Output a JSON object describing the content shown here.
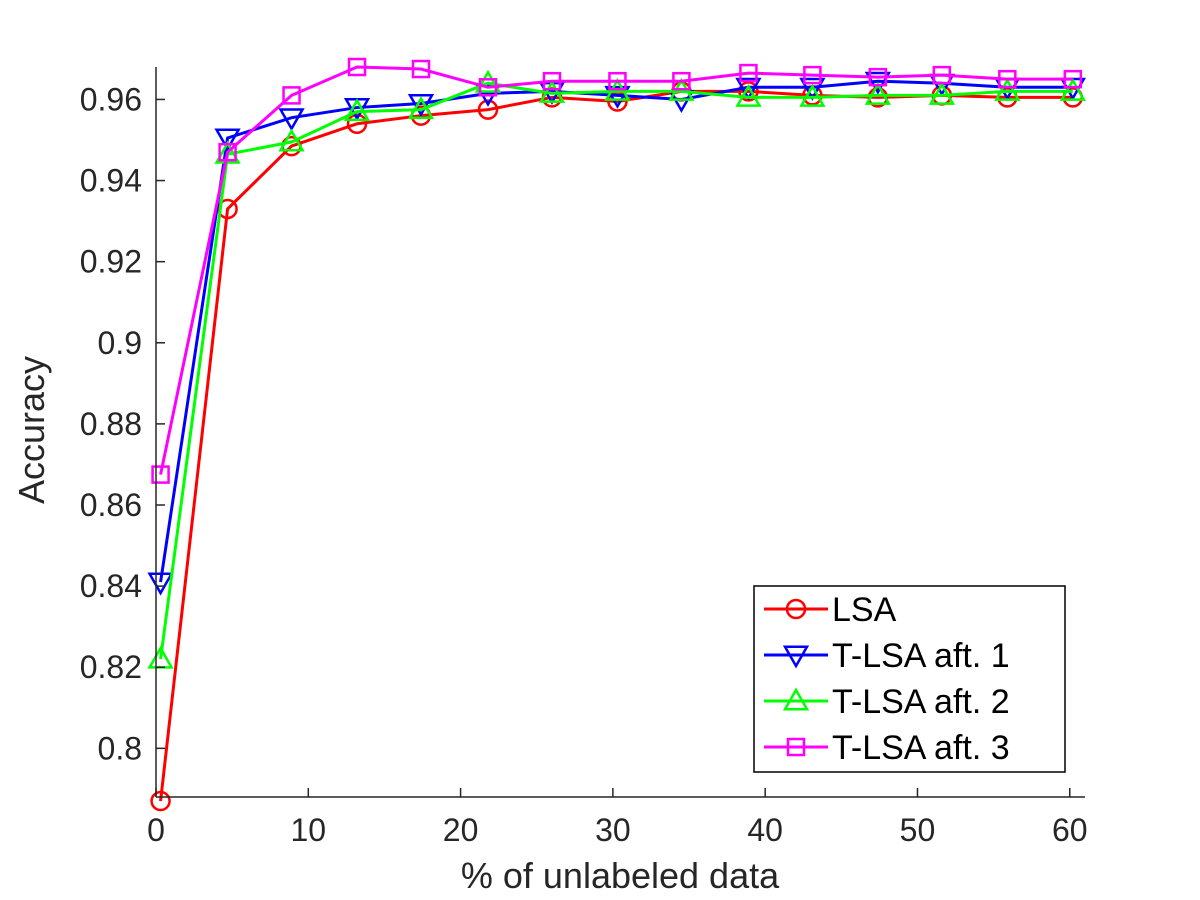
{
  "chart_data": {
    "type": "line",
    "title": "",
    "xlabel": "% of unlabeled data",
    "ylabel": "Accuracy",
    "xlim": [
      0,
      61
    ],
    "ylim": [
      0.788,
      0.968
    ],
    "xticks": [
      0,
      10,
      20,
      30,
      40,
      50,
      60
    ],
    "xtick_labels": [
      "0",
      "10",
      "20",
      "30",
      "40",
      "50",
      "60"
    ],
    "yticks": [
      0.8,
      0.82,
      0.84,
      0.86,
      0.88,
      0.9,
      0.92,
      0.94,
      0.96
    ],
    "ytick_labels": [
      "0.8",
      "0.82",
      "0.84",
      "0.86",
      "0.88",
      "0.9",
      "0.92",
      "0.94",
      "0.96"
    ],
    "grid": false,
    "legend_position": "bottom-right",
    "x": [
      0.3,
      4.7,
      8.9,
      13.2,
      17.4,
      21.8,
      26.0,
      30.3,
      34.5,
      38.9,
      43.1,
      47.4,
      51.6,
      55.9,
      60.2
    ],
    "series": [
      {
        "name": "LSA",
        "color": "#ff0000",
        "marker": "circle",
        "values": [
          0.787,
          0.933,
          0.9485,
          0.954,
          0.956,
          0.9575,
          0.9605,
          0.9595,
          0.962,
          0.962,
          0.961,
          0.9605,
          0.961,
          0.9605,
          0.9605
        ]
      },
      {
        "name": "T-LSA aft. 1",
        "color": "#0000ff",
        "marker": "triangle-down",
        "values": [
          0.841,
          0.9505,
          0.9555,
          0.958,
          0.959,
          0.9615,
          0.962,
          0.961,
          0.96,
          0.963,
          0.963,
          0.9645,
          0.964,
          0.963,
          0.963
        ]
      },
      {
        "name": "T-LSA aft. 2",
        "color": "#00ff00",
        "marker": "triangle-up",
        "values": [
          0.822,
          0.9465,
          0.9495,
          0.957,
          0.9575,
          0.964,
          0.9615,
          0.962,
          0.962,
          0.9605,
          0.9605,
          0.961,
          0.961,
          0.962,
          0.962
        ]
      },
      {
        "name": "T-LSA aft. 3",
        "color": "#ff00ff",
        "marker": "square",
        "values": [
          0.8675,
          0.947,
          0.961,
          0.968,
          0.9675,
          0.963,
          0.9645,
          0.9645,
          0.9645,
          0.9665,
          0.966,
          0.9655,
          0.966,
          0.965,
          0.965
        ]
      }
    ]
  }
}
